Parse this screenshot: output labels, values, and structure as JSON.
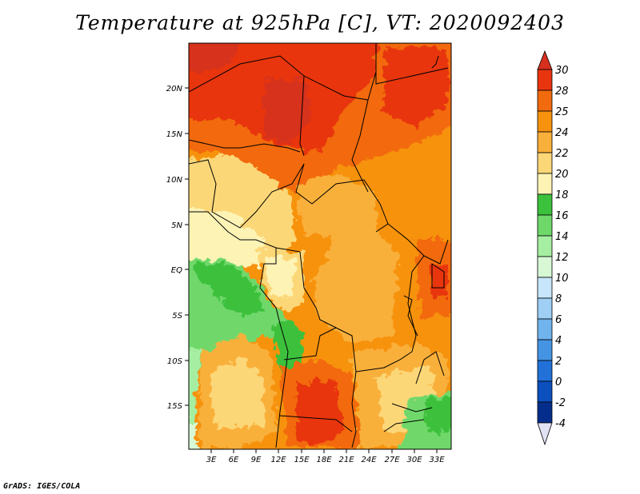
{
  "title": "Temperature at 925hPa [C], VT: 2020092403",
  "credit": "GrADS: IGES/COLA",
  "map": {
    "lat_labels": [
      "20N",
      "15N",
      "10N",
      "5N",
      "EQ",
      "5S",
      "10S",
      "15S"
    ],
    "lon_labels": [
      "3E",
      "6E",
      "9E",
      "12E",
      "15E",
      "18E",
      "21E",
      "24E",
      "27E",
      "30E",
      "33E"
    ]
  },
  "colorbar": {
    "labels": [
      "30",
      "28",
      "25",
      "24",
      "22",
      "20",
      "18",
      "16",
      "14",
      "12",
      "10",
      "8",
      "6",
      "4",
      "2",
      "0",
      "-2",
      "-4"
    ],
    "colors": {
      "top_arrow": "#d7301f",
      "b28_30": "#e8350f",
      "b25_28": "#f26a0e",
      "b24_25": "#f7920e",
      "b22_24": "#f9b03a",
      "b20_22": "#fcd778",
      "b18_20": "#fdf3b5",
      "b16_18": "#3cc13c",
      "b14_16": "#6fd86a",
      "b12_14": "#a6eea2",
      "b10_12": "#d8f8d5",
      "b8_10": "#c7e6fb",
      "b6_8": "#9fcff5",
      "b4_6": "#70b3ed",
      "b2_4": "#4594e4",
      "b0_2": "#2171d8",
      "bm2_0": "#0c4fbf",
      "bm4_m2": "#052e8c",
      "bottom_arrow": "#0b1660",
      "below_arrow": "#e2e2f5"
    }
  }
}
